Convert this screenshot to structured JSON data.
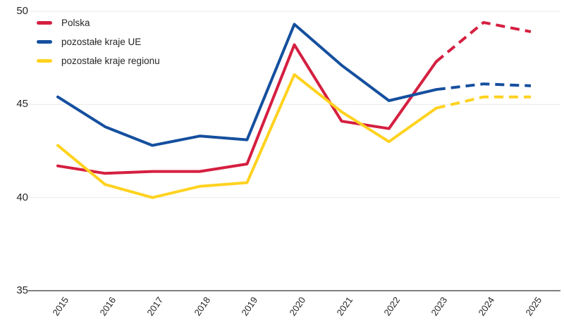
{
  "chart_data": {
    "type": "line",
    "title": "",
    "xlabel": "",
    "ylabel": "",
    "x": [
      2015,
      2016,
      2017,
      2018,
      2019,
      2020,
      2021,
      2022,
      2023,
      2024,
      2025
    ],
    "series": [
      {
        "name": "Polska",
        "color": "#d51f40",
        "values": [
          41.7,
          41.3,
          41.4,
          41.4,
          41.8,
          48.2,
          44.1,
          43.7,
          47.3,
          49.4,
          48.9
        ],
        "dashed_from_index": 8
      },
      {
        "name": "pozostałe kraje UE",
        "color": "#154f9e",
        "values": [
          45.4,
          43.8,
          42.8,
          43.3,
          43.1,
          49.3,
          47.1,
          45.2,
          45.8,
          46.1,
          46.0
        ],
        "dashed_from_index": 8
      },
      {
        "name": "pozostałe kraje regionu",
        "color": "#ffd21f",
        "values": [
          42.8,
          40.7,
          40.0,
          40.6,
          40.8,
          46.6,
          44.6,
          43.0,
          44.8,
          45.4,
          45.4
        ],
        "dashed_from_index": 8
      }
    ],
    "ylim": [
      35,
      50
    ],
    "yticks": [
      50,
      45,
      40,
      35
    ],
    "grid": "horizontal-light",
    "legend_position": "top-left",
    "colors": {
      "grid_line": "#ebebeb",
      "axis_line": "#808080",
      "text": "#262626",
      "background": "#ffffff"
    }
  }
}
